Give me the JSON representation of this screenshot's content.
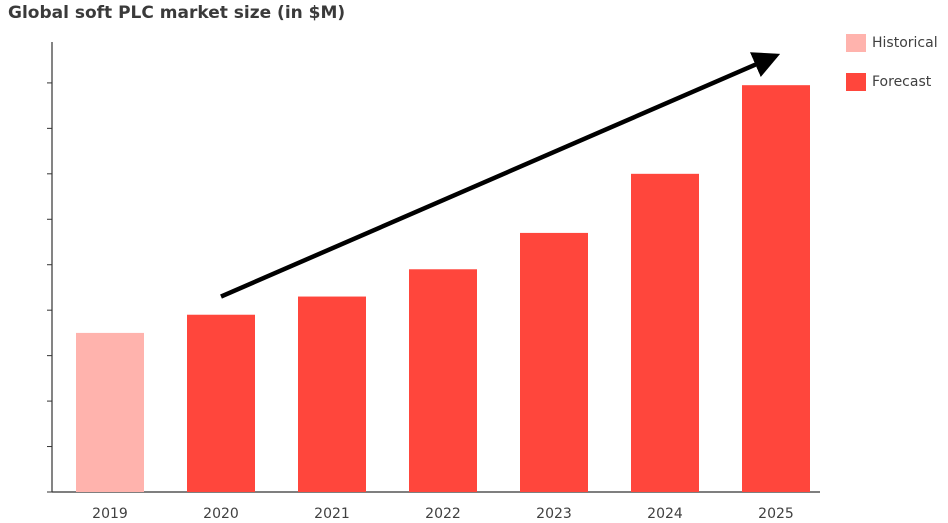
{
  "colors": {
    "historical": "#ffb3ad",
    "forecast": "#ff463c",
    "axis": "#333333",
    "arrow": "#000000"
  },
  "chart_data": {
    "type": "bar",
    "title": "Global soft PLC market size (in $M)",
    "xlabel": "",
    "ylabel": "",
    "categories": [
      "2019",
      "2020",
      "2021",
      "2022",
      "2023",
      "2024",
      "2025"
    ],
    "values": [
      3.5,
      3.9,
      4.3,
      4.9,
      5.7,
      7.0,
      8.95
    ],
    "ylim": [
      0,
      9.9
    ],
    "yticks": [
      0,
      1,
      2,
      3,
      4,
      5,
      6,
      7,
      8,
      9
    ],
    "grid": false,
    "legend": {
      "position": "top-right",
      "entries": [
        "Historical",
        "Forecast"
      ]
    },
    "bar_series": [
      "Historical",
      "Forecast",
      "Forecast",
      "Forecast",
      "Forecast",
      "Forecast",
      "Forecast"
    ],
    "annotations": [
      {
        "type": "trend-arrow",
        "from": [
          "2020",
          4.3
        ],
        "to": [
          "2025",
          9.6
        ]
      }
    ]
  }
}
